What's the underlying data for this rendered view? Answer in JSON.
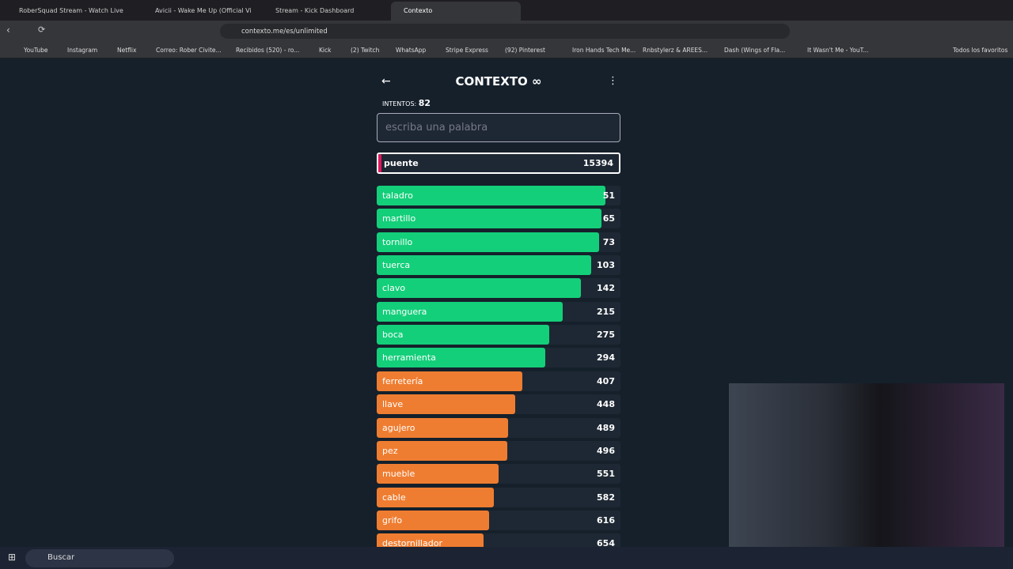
{
  "browser": {
    "tabs": [
      "RoberSquad Stream - Watch Live",
      "Avicii - Wake Me Up (Official Vid",
      "Stream - Kick Dashboard",
      "Contexto"
    ],
    "address": "contexto.me/es/unlimited",
    "bookmarks": [
      "YouTube",
      "Instagram",
      "Netflix",
      "Correo: Rober Civite...",
      "Recibidos (520) - ro...",
      "Kick",
      "(2) Twitch",
      "WhatsApp",
      "Stripe Express",
      "(92) Pinterest",
      "Iron Hands Tech Me...",
      "Rnbstylerz & AREES...",
      "Dash (Wings of Fla...",
      "It Wasn't Me - YouT..."
    ],
    "all_bookmarks": "Todos los favoritos"
  },
  "game": {
    "title": "CONTEXTO",
    "attempts_label": "INTENTOS:",
    "attempts": 82,
    "placeholder": "escriba una palabra",
    "last_guess": {
      "word": "puente",
      "rank": 15394
    },
    "guesses": [
      {
        "word": "taladro",
        "rank": 51
      },
      {
        "word": "martillo",
        "rank": 65
      },
      {
        "word": "tornillo",
        "rank": 73
      },
      {
        "word": "tuerca",
        "rank": 103
      },
      {
        "word": "clavo",
        "rank": 142
      },
      {
        "word": "manguera",
        "rank": 215
      },
      {
        "word": "boca",
        "rank": 275
      },
      {
        "word": "herramienta",
        "rank": 294
      },
      {
        "word": "ferretería",
        "rank": 407
      },
      {
        "word": "llave",
        "rank": 448
      },
      {
        "word": "agujero",
        "rank": 489
      },
      {
        "word": "pez",
        "rank": 496
      },
      {
        "word": "mueble",
        "rank": 551
      },
      {
        "word": "cable",
        "rank": 582
      },
      {
        "word": "grifo",
        "rank": 616
      },
      {
        "word": "destornillador",
        "rank": 654
      }
    ]
  },
  "taskbar": {
    "search": "Buscar"
  }
}
